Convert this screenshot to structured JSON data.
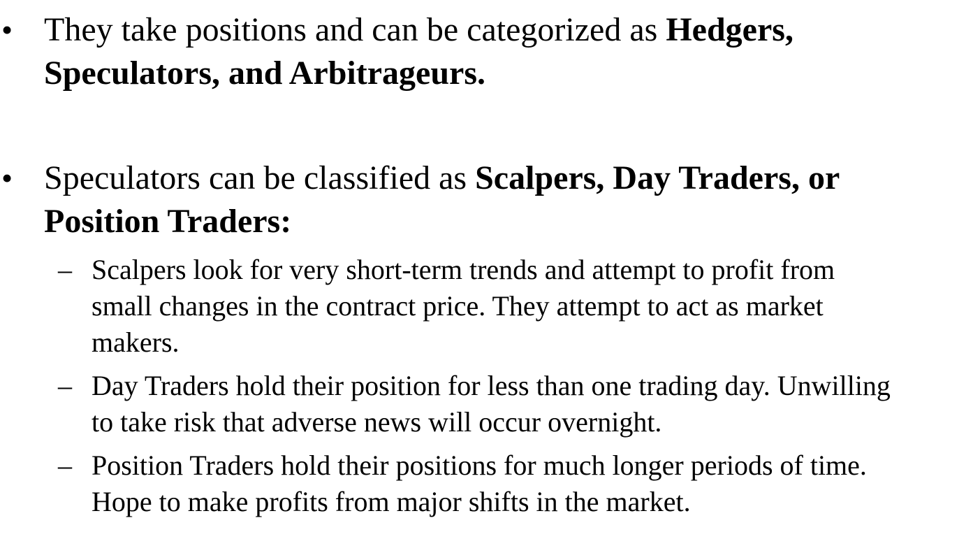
{
  "bullets": [
    {
      "marker": "•",
      "lines": [
        {
          "plain": "They take positions and can be categorized as ",
          "bold": "Hedgers,"
        },
        {
          "plain": "",
          "bold": "Speculators, and Arbitrageurs."
        }
      ]
    },
    {
      "marker": "•",
      "lines": [
        {
          "plain": "Speculators can be classified as ",
          "bold": "Scalpers, Day Traders, or"
        },
        {
          "plain": "",
          "bold": "Position Traders:"
        }
      ],
      "sub_items": [
        {
          "marker": "–",
          "lines": [
            "Scalpers look for very short-term trends and attempt to profit from",
            "small changes in the contract price. They attempt to act as market",
            "makers."
          ]
        },
        {
          "marker": "–",
          "lines": [
            "Day Traders hold their position for less than one trading day. Unwilling",
            "to take risk that adverse news will occur overnight."
          ]
        },
        {
          "marker": "–",
          "lines": [
            "Position Traders hold their positions for much longer periods of time.",
            "Hope to make profits from major shifts in the market."
          ]
        }
      ]
    }
  ]
}
